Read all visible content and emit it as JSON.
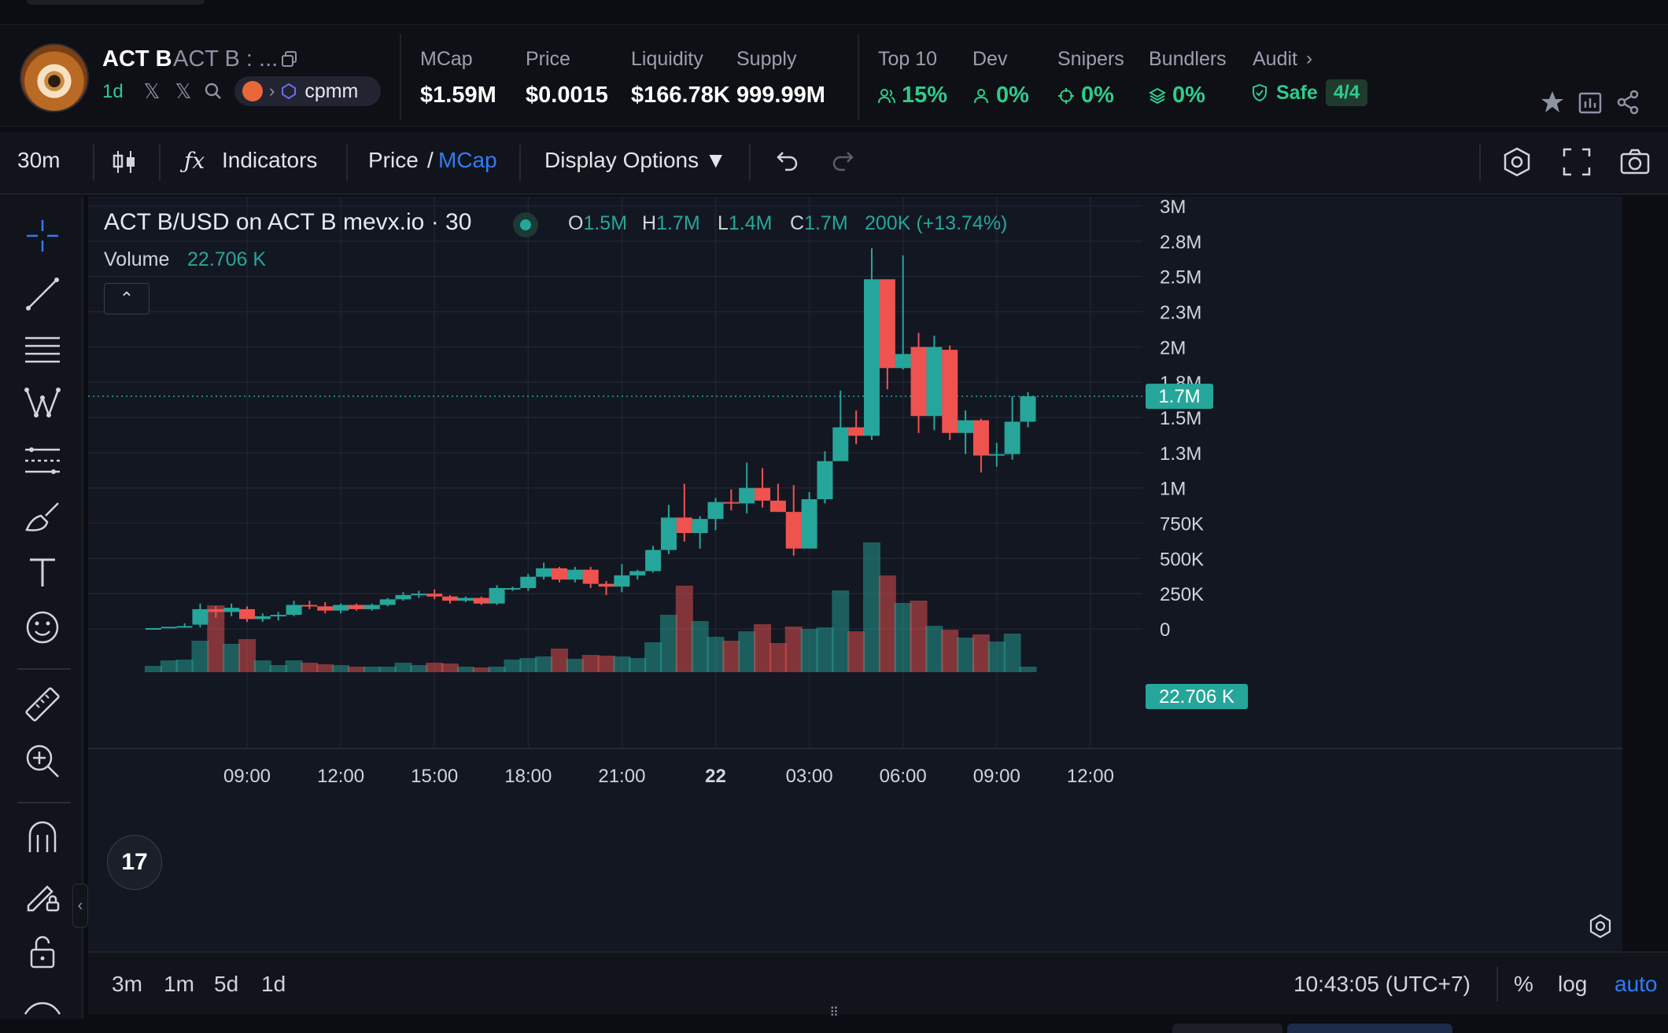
{
  "token": {
    "symbol": "ACT B",
    "name": "ACT B : ...",
    "age": "1d",
    "dex": "cpmm"
  },
  "stats": {
    "mcap": {
      "label": "MCap",
      "value": "$1.59M"
    },
    "price": {
      "label": "Price",
      "value": "$0.0015"
    },
    "liquidity": {
      "label": "Liquidity",
      "value": "$166.78K"
    },
    "supply": {
      "label": "Supply",
      "value": "999.99M"
    },
    "top10": {
      "label": "Top 10",
      "value": "15%"
    },
    "dev": {
      "label": "Dev",
      "value": "0%"
    },
    "snipers": {
      "label": "Snipers",
      "value": "0%"
    },
    "bundlers": {
      "label": "Bundlers",
      "value": "0%"
    },
    "audit": {
      "label": "Audit",
      "status": "Safe",
      "score": "4/4"
    }
  },
  "toolbar": {
    "interval": "30m",
    "indicators": "Indicators",
    "price": "Price",
    "slash": "/",
    "mcap": "MCap",
    "display_options": "Display Options ▼"
  },
  "legend": {
    "title": "ACT B/USD on ACT B mevx.io · 30",
    "o_label": "O",
    "o": "1.5M",
    "h_label": "H",
    "h": "1.7M",
    "l_label": "L",
    "l": "1.4M",
    "c_label": "C",
    "c": "1.7M",
    "change": "200K (+13.74%)",
    "volume_label": "Volume",
    "volume_value": "22.706 K"
  },
  "bottom": {
    "ranges": [
      "3m",
      "1m",
      "5d",
      "1d"
    ],
    "clock": "10:43:05 (UTC+7)",
    "percent": "%",
    "log": "log",
    "auto": "auto"
  },
  "colors": {
    "up": "#26a69a",
    "down": "#ef5350",
    "accent": "#2962ff",
    "positive_text": "#2ecc8c"
  },
  "chart_data": {
    "type": "candlestick",
    "title": "ACT B/USD on ACT B mevx.io · 30",
    "y_ticks": [
      "3M",
      "2.8M",
      "2.5M",
      "2.3M",
      "2M",
      "1.8M",
      "1.5M",
      "1.3M",
      "1M",
      "750K",
      "500K",
      "250K",
      "0"
    ],
    "y_tick_values": [
      3000000,
      2750000,
      2500000,
      2250000,
      2000000,
      1750000,
      1500000,
      1250000,
      1000000,
      750000,
      500000,
      250000,
      0
    ],
    "ylim": [
      0,
      3000000
    ],
    "x_ticks": [
      "09:00",
      "12:00",
      "15:00",
      "18:00",
      "21:00",
      "22",
      "03:00",
      "06:00",
      "09:00",
      "12:00"
    ],
    "x_tick_times": [
      9,
      12,
      15,
      18,
      21,
      24,
      27,
      30,
      33,
      36
    ],
    "last_price_label": "1.7M",
    "last_price": 1650000,
    "volume_label": "22.706 K",
    "candles": [
      {
        "t": 6.0,
        "o": 0,
        "h": 0,
        "l": 0,
        "c": 0,
        "v": 8
      },
      {
        "t": 6.5,
        "o": 10000,
        "h": 12000,
        "l": 5000,
        "c": 15000,
        "v": 15
      },
      {
        "t": 7.0,
        "o": 15000,
        "h": 40000,
        "l": 10000,
        "c": 20000,
        "v": 16
      },
      {
        "t": 7.5,
        "o": 30000,
        "h": 180000,
        "l": 10000,
        "c": 140000,
        "v": 40
      },
      {
        "t": 8.0,
        "o": 140000,
        "h": 160000,
        "l": 80000,
        "c": 120000,
        "v": 85
      },
      {
        "t": 8.5,
        "o": 120000,
        "h": 180000,
        "l": 90000,
        "c": 150000,
        "v": 36
      },
      {
        "t": 9.0,
        "o": 140000,
        "h": 160000,
        "l": 50000,
        "c": 70000,
        "v": 42
      },
      {
        "t": 9.5,
        "o": 70000,
        "h": 110000,
        "l": 50000,
        "c": 90000,
        "v": 15
      },
      {
        "t": 10.0,
        "o": 90000,
        "h": 120000,
        "l": 60000,
        "c": 100000,
        "v": 9
      },
      {
        "t": 10.5,
        "o": 100000,
        "h": 200000,
        "l": 90000,
        "c": 170000,
        "v": 15
      },
      {
        "t": 11.0,
        "o": 170000,
        "h": 200000,
        "l": 140000,
        "c": 160000,
        "v": 12
      },
      {
        "t": 11.5,
        "o": 160000,
        "h": 190000,
        "l": 110000,
        "c": 130000,
        "v": 10
      },
      {
        "t": 12.0,
        "o": 130000,
        "h": 180000,
        "l": 110000,
        "c": 170000,
        "v": 9
      },
      {
        "t": 12.5,
        "o": 170000,
        "h": 180000,
        "l": 130000,
        "c": 140000,
        "v": 7
      },
      {
        "t": 13.0,
        "o": 140000,
        "h": 180000,
        "l": 130000,
        "c": 170000,
        "v": 7
      },
      {
        "t": 13.5,
        "o": 170000,
        "h": 220000,
        "l": 160000,
        "c": 210000,
        "v": 7
      },
      {
        "t": 14.0,
        "o": 210000,
        "h": 260000,
        "l": 200000,
        "c": 240000,
        "v": 12
      },
      {
        "t": 14.5,
        "o": 240000,
        "h": 270000,
        "l": 220000,
        "c": 250000,
        "v": 9
      },
      {
        "t": 15.0,
        "o": 250000,
        "h": 280000,
        "l": 210000,
        "c": 230000,
        "v": 12
      },
      {
        "t": 15.5,
        "o": 230000,
        "h": 240000,
        "l": 180000,
        "c": 200000,
        "v": 11
      },
      {
        "t": 16.0,
        "o": 200000,
        "h": 230000,
        "l": 190000,
        "c": 220000,
        "v": 7
      },
      {
        "t": 16.5,
        "o": 220000,
        "h": 230000,
        "l": 170000,
        "c": 180000,
        "v": 6
      },
      {
        "t": 17.0,
        "o": 180000,
        "h": 310000,
        "l": 170000,
        "c": 290000,
        "v": 7
      },
      {
        "t": 17.5,
        "o": 290000,
        "h": 300000,
        "l": 270000,
        "c": 290000,
        "v": 16
      },
      {
        "t": 18.0,
        "o": 290000,
        "h": 390000,
        "l": 270000,
        "c": 370000,
        "v": 18
      },
      {
        "t": 18.5,
        "o": 370000,
        "h": 470000,
        "l": 350000,
        "c": 430000,
        "v": 20
      },
      {
        "t": 19.0,
        "o": 430000,
        "h": 440000,
        "l": 330000,
        "c": 350000,
        "v": 30
      },
      {
        "t": 19.5,
        "o": 350000,
        "h": 440000,
        "l": 330000,
        "c": 420000,
        "v": 17
      },
      {
        "t": 20.0,
        "o": 420000,
        "h": 440000,
        "l": 290000,
        "c": 320000,
        "v": 22
      },
      {
        "t": 20.5,
        "o": 320000,
        "h": 340000,
        "l": 240000,
        "c": 300000,
        "v": 21
      },
      {
        "t": 21.0,
        "o": 300000,
        "h": 460000,
        "l": 260000,
        "c": 380000,
        "v": 20
      },
      {
        "t": 21.5,
        "o": 380000,
        "h": 420000,
        "l": 350000,
        "c": 410000,
        "v": 18
      },
      {
        "t": 22.0,
        "o": 410000,
        "h": 590000,
        "l": 400000,
        "c": 560000,
        "v": 38
      },
      {
        "t": 22.5,
        "o": 560000,
        "h": 880000,
        "l": 530000,
        "c": 790000,
        "v": 73
      },
      {
        "t": 23.0,
        "o": 790000,
        "h": 1030000,
        "l": 620000,
        "c": 680000,
        "v": 110
      },
      {
        "t": 23.5,
        "o": 680000,
        "h": 800000,
        "l": 570000,
        "c": 780000,
        "v": 65
      },
      {
        "t": 24.0,
        "o": 780000,
        "h": 930000,
        "l": 700000,
        "c": 900000,
        "v": 45
      },
      {
        "t": 24.5,
        "o": 900000,
        "h": 990000,
        "l": 840000,
        "c": 890000,
        "v": 40
      },
      {
        "t": 25.0,
        "o": 890000,
        "h": 1180000,
        "l": 820000,
        "c": 1000000,
        "v": 52
      },
      {
        "t": 25.5,
        "o": 1000000,
        "h": 1140000,
        "l": 860000,
        "c": 910000,
        "v": 61
      },
      {
        "t": 26.0,
        "o": 910000,
        "h": 1030000,
        "l": 830000,
        "c": 830000,
        "v": 37
      },
      {
        "t": 26.5,
        "o": 830000,
        "h": 1020000,
        "l": 520000,
        "c": 570000,
        "v": 58
      },
      {
        "t": 27.0,
        "o": 570000,
        "h": 970000,
        "l": 570000,
        "c": 920000,
        "v": 55
      },
      {
        "t": 27.5,
        "o": 920000,
        "h": 1260000,
        "l": 890000,
        "c": 1190000,
        "v": 57
      },
      {
        "t": 28.0,
        "o": 1190000,
        "h": 1690000,
        "l": 1210000,
        "c": 1430000,
        "v": 104
      },
      {
        "t": 28.5,
        "o": 1430000,
        "h": 1550000,
        "l": 1310000,
        "c": 1370000,
        "v": 52
      },
      {
        "t": 29.0,
        "o": 1370000,
        "h": 2700000,
        "l": 1340000,
        "c": 2480000,
        "v": 165
      },
      {
        "t": 29.5,
        "o": 2480000,
        "h": 2480000,
        "l": 1700000,
        "c": 1850000,
        "v": 123
      },
      {
        "t": 30.0,
        "o": 1850000,
        "h": 2650000,
        "l": 1840000,
        "c": 1950000,
        "v": 88
      },
      {
        "t": 30.5,
        "o": 2000000,
        "h": 2100000,
        "l": 1390000,
        "c": 1510000,
        "v": 91
      },
      {
        "t": 31.0,
        "o": 1510000,
        "h": 2080000,
        "l": 1410000,
        "c": 2000000,
        "v": 59
      },
      {
        "t": 31.5,
        "o": 1980000,
        "h": 2010000,
        "l": 1340000,
        "c": 1390000,
        "v": 54
      },
      {
        "t": 32.0,
        "o": 1390000,
        "h": 1550000,
        "l": 1240000,
        "c": 1480000,
        "v": 44
      },
      {
        "t": 32.5,
        "o": 1480000,
        "h": 1490000,
        "l": 1110000,
        "c": 1230000,
        "v": 48
      },
      {
        "t": 33.0,
        "o": 1230000,
        "h": 1320000,
        "l": 1150000,
        "c": 1240000,
        "v": 39
      },
      {
        "t": 33.5,
        "o": 1240000,
        "h": 1650000,
        "l": 1200000,
        "c": 1470000,
        "v": 49
      },
      {
        "t": 34.0,
        "o": 1470000,
        "h": 1680000,
        "l": 1430000,
        "c": 1650000,
        "v": 7
      }
    ]
  }
}
